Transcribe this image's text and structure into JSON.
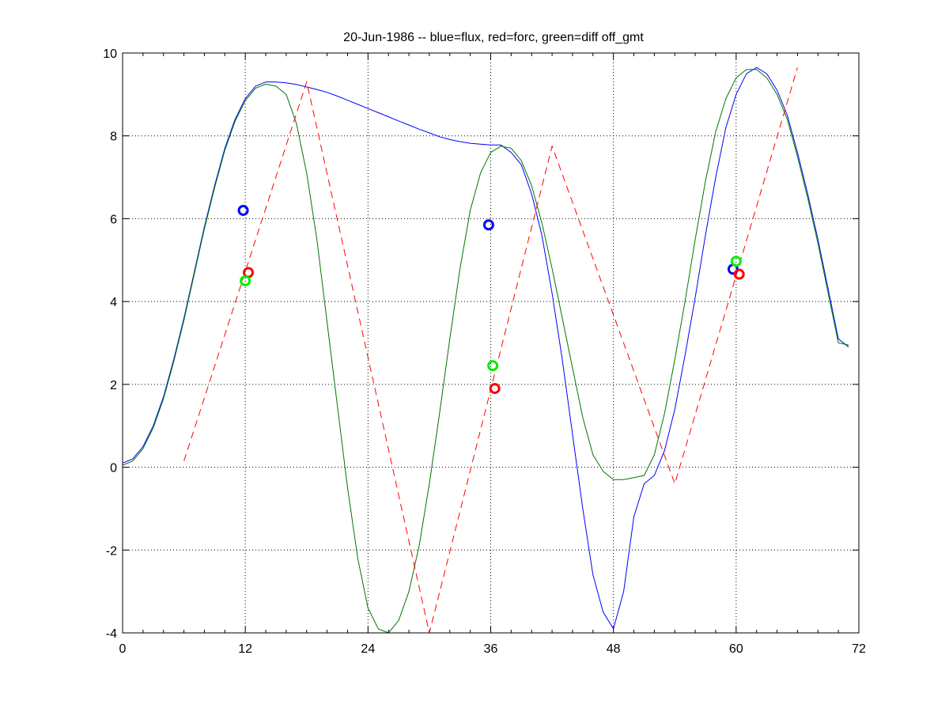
{
  "chart_data": {
    "type": "line",
    "title": "20-Jun-1986 -- blue=flux, red=forc, green=diff off_gmt",
    "xlabel": "",
    "ylabel": "",
    "xlim": [
      0,
      72
    ],
    "ylim": [
      -4,
      10
    ],
    "xticks": [
      0,
      12,
      24,
      36,
      48,
      60,
      72
    ],
    "yticks": [
      -4,
      -2,
      0,
      2,
      4,
      6,
      8,
      10
    ],
    "grid": true,
    "colors": {
      "flux": "#0000ff",
      "forc": "#ff0000",
      "diff": "#007700",
      "flux_marker": "#0000ff",
      "forc_marker": "#ff0000",
      "diff_marker": "#00ee00"
    },
    "series": [
      {
        "color": "#0000ff",
        "style": "solid",
        "x": [
          0,
          1,
          2,
          3,
          4,
          5,
          6,
          7,
          8,
          9,
          10,
          11,
          12,
          13,
          14,
          15,
          16,
          17,
          18,
          19,
          20,
          21,
          22,
          23,
          24,
          25,
          26,
          27,
          28,
          29,
          30,
          31,
          32,
          33,
          34,
          35,
          36,
          37,
          38,
          39,
          40,
          41,
          42,
          43,
          44,
          45,
          46,
          47,
          48,
          49,
          50,
          51,
          52,
          53,
          54,
          55,
          56,
          57,
          58,
          59,
          60,
          61,
          62,
          63,
          64,
          65,
          66,
          67,
          68,
          69,
          70,
          71
        ],
        "y": [
          0.1,
          0.2,
          0.5,
          1.0,
          1.7,
          2.6,
          3.6,
          4.7,
          5.8,
          6.8,
          7.7,
          8.4,
          8.9,
          9.2,
          9.3,
          9.3,
          9.28,
          9.24,
          9.18,
          9.12,
          9.05,
          8.96,
          8.86,
          8.76,
          8.66,
          8.56,
          8.46,
          8.36,
          8.26,
          8.16,
          8.07,
          7.98,
          7.91,
          7.86,
          7.82,
          7.8,
          7.78,
          7.78,
          7.6,
          7.3,
          6.6,
          5.6,
          4.2,
          2.6,
          0.8,
          -1.0,
          -2.6,
          -3.5,
          -3.9,
          -3.0,
          -1.2,
          -0.4,
          -0.2,
          0.4,
          1.4,
          2.7,
          4.1,
          5.6,
          7.0,
          8.2,
          9.0,
          9.5,
          9.65,
          9.5,
          9.1,
          8.5,
          7.6,
          6.6,
          5.5,
          4.3,
          3.1,
          2.9
        ]
      },
      {
        "color": "#007700",
        "style": "solid",
        "x": [
          0,
          1,
          2,
          3,
          4,
          5,
          6,
          7,
          8,
          9,
          10,
          11,
          12,
          13,
          14,
          15,
          16,
          17,
          18,
          19,
          20,
          21,
          22,
          23,
          24,
          25,
          26,
          27,
          28,
          29,
          30,
          31,
          32,
          33,
          34,
          35,
          36,
          37,
          38,
          39,
          40,
          41,
          42,
          43,
          44,
          45,
          46,
          47,
          48,
          49,
          50,
          51,
          52,
          53,
          54,
          55,
          56,
          57,
          58,
          59,
          60,
          61,
          62,
          63,
          64,
          65,
          66,
          67,
          68,
          69,
          70,
          71
        ],
        "y": [
          0.05,
          0.15,
          0.45,
          0.95,
          1.65,
          2.55,
          3.55,
          4.65,
          5.75,
          6.75,
          7.65,
          8.35,
          8.85,
          9.15,
          9.25,
          9.2,
          9.0,
          8.3,
          7.1,
          5.5,
          3.5,
          1.5,
          -0.5,
          -2.2,
          -3.4,
          -3.9,
          -4.0,
          -3.7,
          -3.0,
          -1.9,
          -0.4,
          1.3,
          3.1,
          4.8,
          6.2,
          7.1,
          7.6,
          7.75,
          7.7,
          7.4,
          6.8,
          5.9,
          4.8,
          3.6,
          2.4,
          1.2,
          0.3,
          -0.1,
          -0.3,
          -0.3,
          -0.25,
          -0.2,
          0.3,
          1.3,
          2.6,
          4.0,
          5.5,
          6.9,
          8.1,
          8.9,
          9.4,
          9.6,
          9.6,
          9.4,
          9.0,
          8.4,
          7.5,
          6.5,
          5.4,
          4.2,
          3.0,
          2.95
        ]
      },
      {
        "color": "#ff0000",
        "style": "dashed",
        "x": [
          6,
          18,
          30,
          42,
          54,
          66
        ],
        "y": [
          0.15,
          9.3,
          -4.0,
          7.75,
          -0.4,
          9.65
        ]
      }
    ],
    "markers": [
      {
        "x": 11.8,
        "y": 6.2,
        "color": "#0000ff"
      },
      {
        "x": 12.3,
        "y": 4.7,
        "color": "#ff0000"
      },
      {
        "x": 12.0,
        "y": 4.5,
        "color": "#00ee00"
      },
      {
        "x": 35.8,
        "y": 5.85,
        "color": "#0000ff"
      },
      {
        "x": 36.2,
        "y": 2.45,
        "color": "#00ee00"
      },
      {
        "x": 36.4,
        "y": 1.9,
        "color": "#ff0000"
      },
      {
        "x": 59.7,
        "y": 4.78,
        "color": "#0000ff"
      },
      {
        "x": 60.0,
        "y": 4.97,
        "color": "#00ee00"
      },
      {
        "x": 60.3,
        "y": 4.66,
        "color": "#ff0000"
      }
    ]
  }
}
